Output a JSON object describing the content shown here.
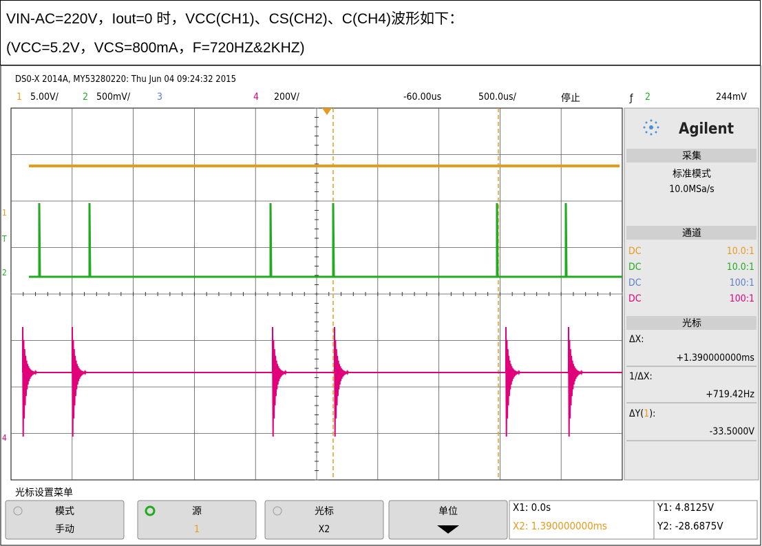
{
  "header": {
    "line1": "VIN-AC=220V，Iout=0 时，VCC(CH1)、CS(CH2)、C(CH4)波形如下：",
    "line2": "(VCC=5.2V，VCS=800mA，F=720HZ&2KHZ)"
  },
  "scope": {
    "info": "DS0-X 2014A, MY53280220: Thu Jun 04 09:24:32 2015",
    "channels": [
      {
        "num": "1",
        "scale": "5.00V/"
      },
      {
        "num": "2",
        "scale": "500mV/"
      },
      {
        "num": "3",
        "scale": ""
      },
      {
        "num": "4",
        "scale": "200V/"
      }
    ],
    "delay": "-60.00us",
    "timebase": "500.0us/",
    "status": "停止",
    "trigger": {
      "channel": "2",
      "level": "244mV"
    },
    "markers": [
      "1",
      "T",
      "2",
      "4"
    ]
  },
  "panel": {
    "brand": "Agilent",
    "acquire": {
      "title": "采集",
      "mode": "标准模式",
      "rate": "10.0MSa/s"
    },
    "channel_panel": {
      "title": "通道",
      "rows": [
        {
          "coupling": "DC",
          "probe": "10.0:1"
        },
        {
          "coupling": "DC",
          "probe": "10.0:1"
        },
        {
          "coupling": "DC",
          "probe": "100:1"
        },
        {
          "coupling": "DC",
          "probe": "100:1"
        }
      ]
    },
    "cursor": {
      "title": "光标",
      "dx_label": "ΔX:",
      "dx": "+1.390000000ms",
      "inv_label": "1/ΔX:",
      "inv": "+719.42Hz",
      "dy_label": [
        "ΔY(",
        "1",
        "):"
      ],
      "dy": "-33.5000V"
    }
  },
  "menu": {
    "title": "光标设置菜单",
    "buttons": [
      {
        "label": "模式",
        "value": "手动"
      },
      {
        "label": "源",
        "value": "1"
      },
      {
        "label": "光标",
        "value": "X2"
      },
      {
        "label": "单位",
        "value": ""
      }
    ],
    "readout": {
      "x1": "X1: 0.0s",
      "x2": "X2: 1.390000000ms",
      "y1": "Y1: 4.8125V",
      "y2": "Y2: -28.6875V"
    }
  }
}
